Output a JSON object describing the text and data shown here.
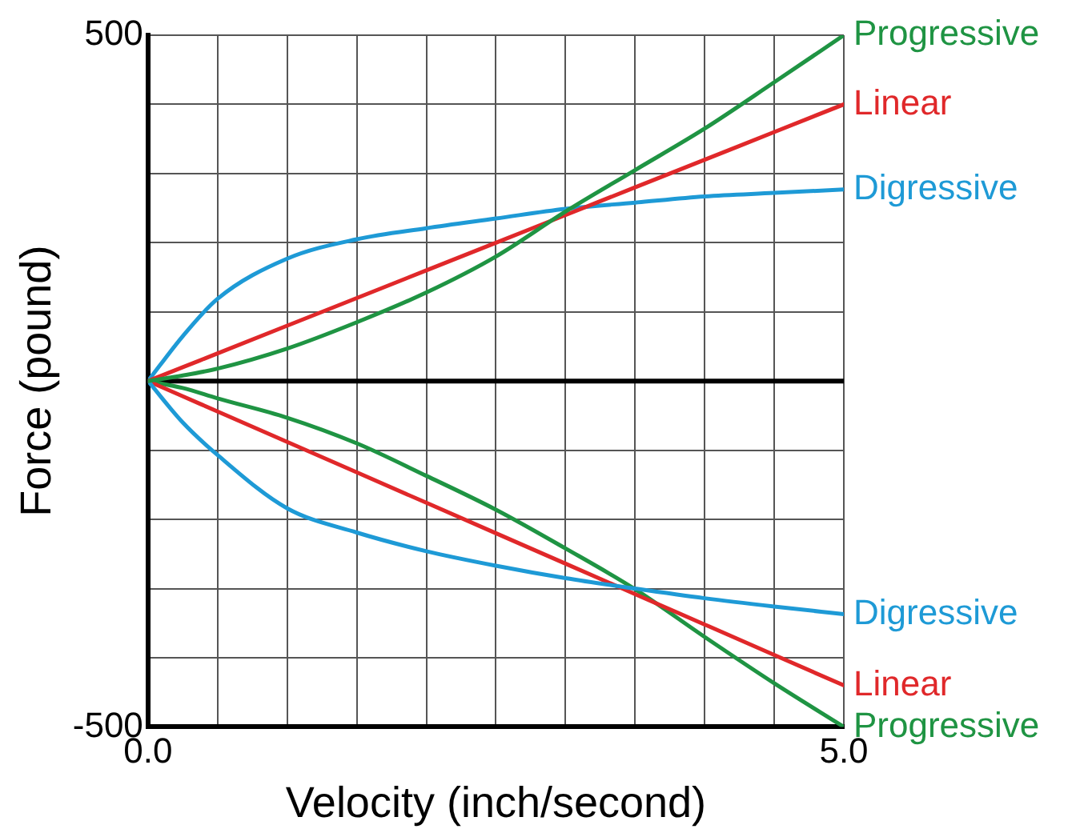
{
  "chart_data": {
    "type": "line",
    "xlabel": "Velocity (inch/second)",
    "ylabel": "Force (pound)",
    "x": [
      0,
      0.25,
      0.5,
      1,
      1.5,
      2,
      2.5,
      3,
      3.5,
      4,
      4.5,
      5
    ],
    "series": [
      {
        "name": "Progressive",
        "color": "#1f9443",
        "values": [
          0,
          8,
          18,
          47,
          85,
          128,
          180,
          245,
          305,
          365,
          432,
          500
        ]
      },
      {
        "name": "Linear",
        "color": "#e0282a",
        "values": [
          0,
          20,
          40,
          80,
          120,
          160,
          200,
          240,
          280,
          320,
          360,
          400
        ]
      },
      {
        "name": "Digressive",
        "color": "#1e9ad6",
        "values": [
          0,
          65,
          119,
          177,
          205,
          221,
          235,
          249,
          258,
          267,
          272,
          277
        ]
      },
      {
        "name": "Digressive",
        "color": "#1e9ad6",
        "values": [
          0,
          -60,
          -107,
          -184,
          -219,
          -246,
          -267,
          -285,
          -300,
          -314,
          -326,
          -337
        ]
      },
      {
        "name": "Linear",
        "color": "#e0282a",
        "values": [
          0,
          -22,
          -44,
          -88,
          -132,
          -176,
          -220,
          -264,
          -308,
          -352,
          -396,
          -440
        ]
      },
      {
        "name": "Progressive",
        "color": "#1f9443",
        "values": [
          0,
          -10,
          -25,
          -53,
          -90,
          -137,
          -186,
          -242,
          -301,
          -370,
          -437,
          -500
        ]
      }
    ],
    "xlim": [
      0,
      5
    ],
    "ylim": [
      -500,
      500
    ],
    "xticks": [
      {
        "value": 0,
        "label": "0.0"
      },
      {
        "value": 0.5,
        "label": null
      },
      {
        "value": 1,
        "label": null
      },
      {
        "value": 1.5,
        "label": null
      },
      {
        "value": 2,
        "label": null
      },
      {
        "value": 2.5,
        "label": null
      },
      {
        "value": 3,
        "label": null
      },
      {
        "value": 3.5,
        "label": null
      },
      {
        "value": 4,
        "label": null
      },
      {
        "value": 4.5,
        "label": null
      },
      {
        "value": 5,
        "label": "5.0"
      }
    ],
    "yticks": [
      -500,
      {
        "value": -400,
        "label": null
      },
      {
        "value": -300,
        "label": null
      },
      {
        "value": -200,
        "label": null
      },
      {
        "value": -100,
        "label": null
      },
      {
        "value": 0,
        "label": null
      },
      {
        "value": 100,
        "label": null
      },
      {
        "value": 200,
        "label": null
      },
      {
        "value": 300,
        "label": null
      },
      {
        "value": 400,
        "label": null
      },
      500
    ],
    "ref_lines": [
      {
        "axis": "y",
        "value": 0,
        "color": "#000000"
      }
    ],
    "grid": true,
    "legend": false,
    "marker": "none",
    "line_style": "solid"
  }
}
